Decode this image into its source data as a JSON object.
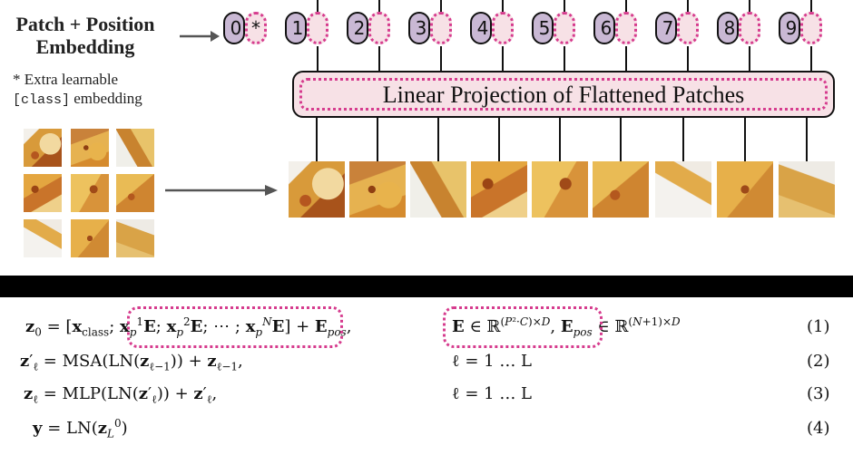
{
  "header": {
    "title": "Patch + Position Embedding"
  },
  "note": {
    "line1": "* Extra learnable",
    "line2_mono": "[class]",
    "line2_rest": " embedding"
  },
  "tokens": [
    {
      "label": "0",
      "extra": "*"
    },
    {
      "label": "1"
    },
    {
      "label": "2"
    },
    {
      "label": "3"
    },
    {
      "label": "4"
    },
    {
      "label": "5"
    },
    {
      "label": "6"
    },
    {
      "label": "7"
    },
    {
      "label": "8"
    },
    {
      "label": "9"
    }
  ],
  "projection": {
    "label": "Linear Projection of Flattened Patches"
  },
  "equations": [
    {
      "lhs": "z",
      "num": "(1)"
    },
    {
      "num": "(2)",
      "range": "ℓ = 1 … L"
    },
    {
      "num": "(3)",
      "range": "ℓ = 1 … L"
    },
    {
      "num": "(4)"
    }
  ],
  "colors": {
    "pink_dotted": "#d63c8e",
    "pink_fill": "#f7e1e6",
    "purple_fill": "#c9b8d4"
  }
}
